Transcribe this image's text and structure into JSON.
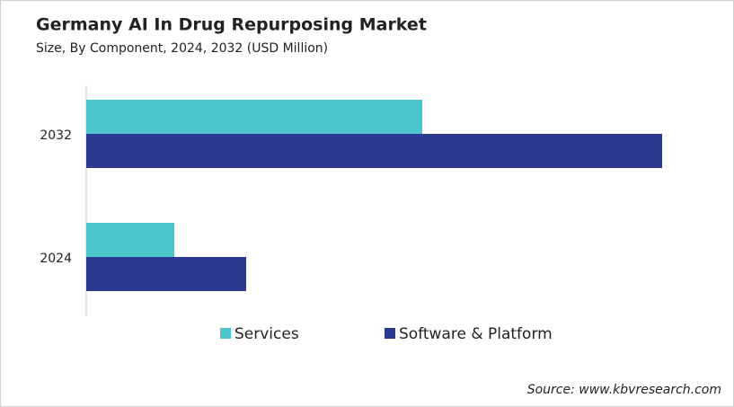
{
  "chart_data": {
    "type": "bar",
    "orientation": "horizontal",
    "title": "Germany AI In Drug Repurposing Market",
    "subtitle": "Size, By Component, 2024, 2032 (USD Million)",
    "categories": [
      "2032",
      "2024"
    ],
    "series": [
      {
        "name": "Services",
        "color": "#4cc5cd",
        "values": [
          37.4,
          9.8
        ]
      },
      {
        "name": "Software & Platform",
        "color": "#2b3990",
        "values": [
          64.1,
          17.8
        ]
      }
    ],
    "source": "Source: www.kbvresearch.com"
  }
}
